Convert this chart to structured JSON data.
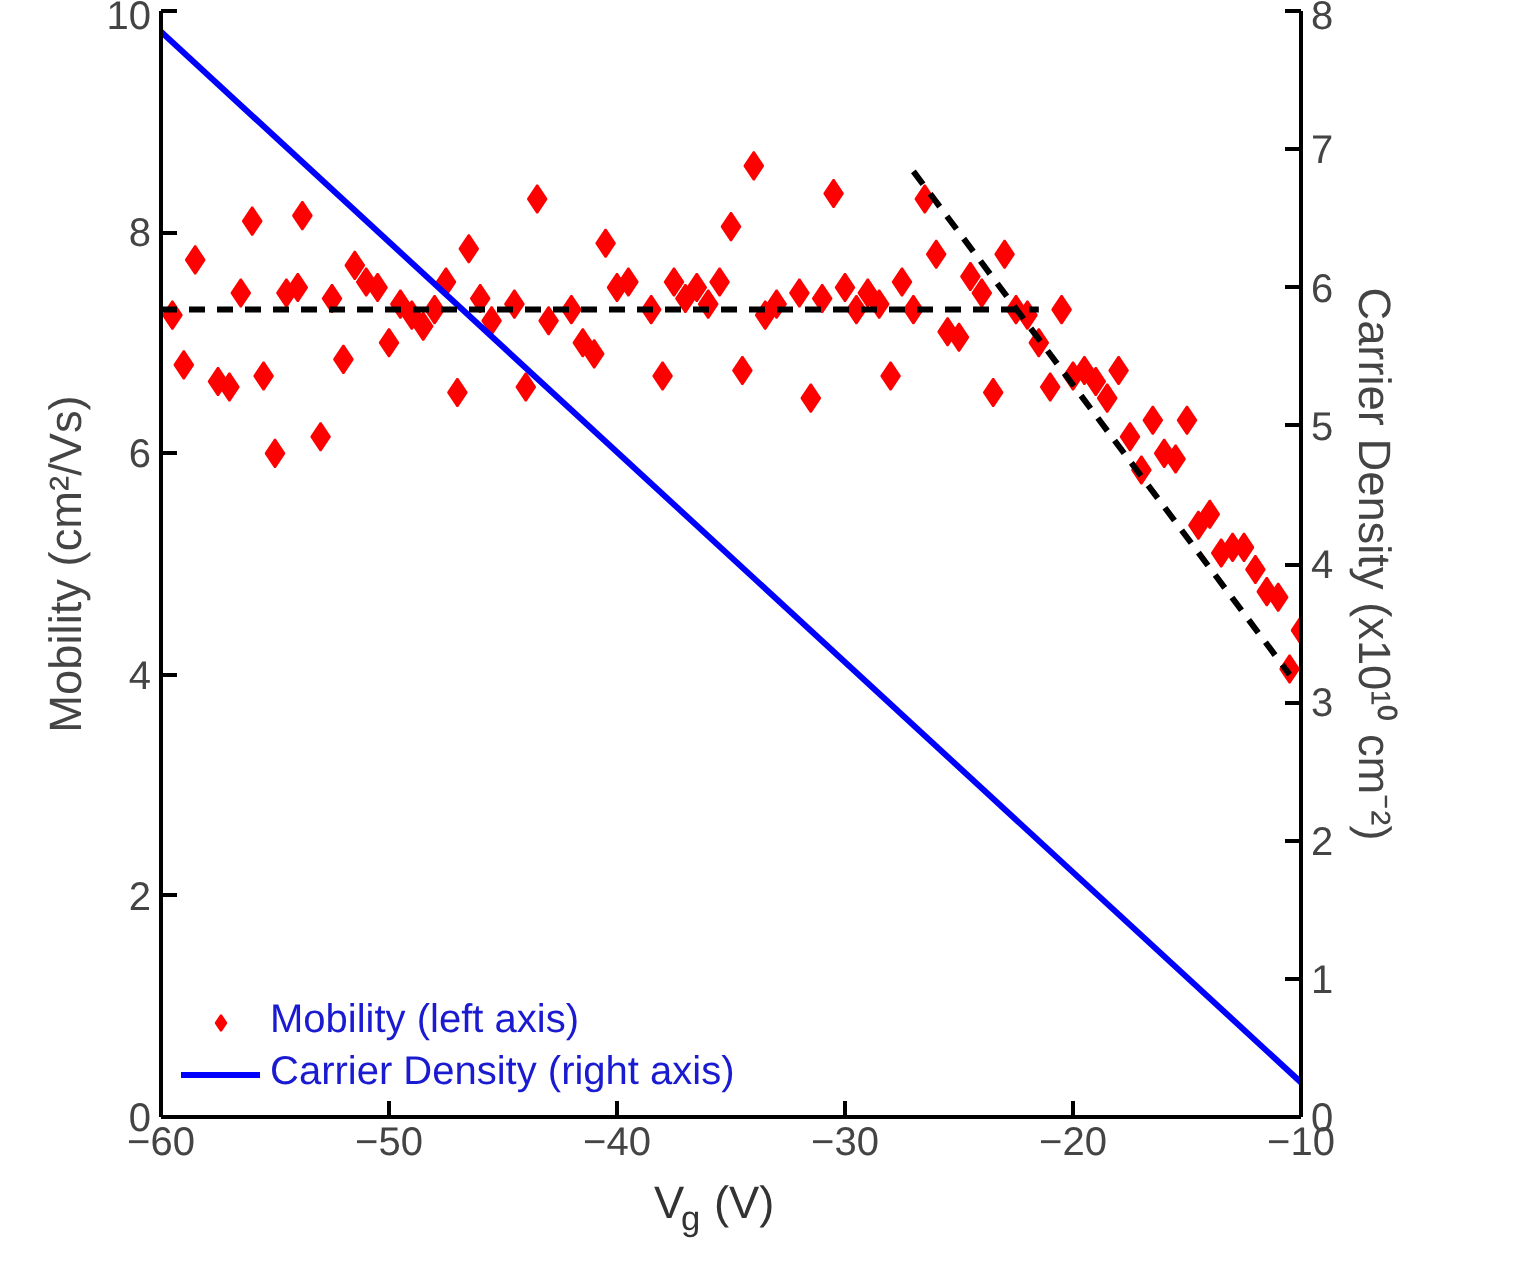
{
  "chart_data": {
    "type": "scatter",
    "xlabel": "V$_{g}$ (V)",
    "ylabel": "Mobility (cm²/Vs)",
    "y2label": "Carrier Density (x10¹⁰ cm⁻²)",
    "xlim": [
      -60,
      -10
    ],
    "xticks": [
      -60,
      -50,
      -40,
      -30,
      -20,
      -10
    ],
    "ylim": [
      0,
      10
    ],
    "yticks": [
      0,
      2,
      4,
      6,
      8,
      10
    ],
    "y2lim": [
      0,
      8
    ],
    "y2ticks": [
      0,
      1,
      2,
      3,
      4,
      5,
      6,
      7,
      8
    ],
    "grid": false,
    "legend": "bottom left",
    "series": [
      {
        "name": "Mobility (left axis)",
        "type": "scatter",
        "marker": "diamond",
        "color": "#ff0000",
        "x": [
          -59.5,
          -59,
          -58.5,
          -57.5,
          -57,
          -56.5,
          -56,
          -55.5,
          -55,
          -54.5,
          -54,
          -53.8,
          -53,
          -52.5,
          -52,
          -51.5,
          -51,
          -50.5,
          -50,
          -49.5,
          -49,
          -48.5,
          -48,
          -47.5,
          -47,
          -46.5,
          -46,
          -45.5,
          -44.5,
          -44,
          -43.5,
          -43,
          -42,
          -41.5,
          -41,
          -40.5,
          -40,
          -39.5,
          -38.5,
          -38,
          -37.5,
          -37,
          -36.5,
          -36,
          -35.5,
          -35,
          -34.5,
          -34,
          -33.5,
          -33,
          -32,
          -31.5,
          -31,
          -30.5,
          -30,
          -29.5,
          -29,
          -28.5,
          -28,
          -27.5,
          -27,
          -26.5,
          -26,
          -25.5,
          -25,
          -24.5,
          -24,
          -23.5,
          -23,
          -22.5,
          -22,
          -21.5,
          -21,
          -20.5,
          -20,
          -19.5,
          -19,
          -18.5,
          -18,
          -17.5,
          -17,
          -16.5,
          -16,
          -15.5,
          -15,
          -14.5,
          -14,
          -13.5,
          -13,
          -12.5,
          -12,
          -11.5,
          -11,
          -10.5,
          -10
        ],
        "values": [
          7.25,
          6.8,
          7.75,
          6.65,
          6.6,
          7.45,
          8.1,
          6.7,
          6.0,
          7.45,
          7.5,
          8.15,
          6.15,
          7.4,
          6.85,
          7.7,
          7.55,
          7.5,
          7.0,
          7.35,
          7.25,
          7.15,
          7.3,
          7.55,
          6.55,
          7.85,
          7.4,
          7.2,
          7.35,
          6.6,
          8.3,
          7.2,
          7.3,
          7.0,
          6.9,
          7.9,
          7.5,
          7.55,
          7.3,
          6.7,
          7.55,
          7.4,
          7.5,
          7.35,
          7.55,
          8.05,
          6.75,
          8.6,
          7.25,
          7.35,
          7.45,
          6.5,
          7.4,
          8.35,
          7.5,
          7.3,
          7.45,
          7.35,
          6.7,
          7.55,
          7.3,
          8.3,
          7.8,
          7.1,
          7.05,
          7.6,
          7.45,
          6.55,
          7.8,
          7.3,
          7.25,
          7.0,
          6.6,
          7.3,
          6.7,
          6.75,
          6.65,
          6.5,
          6.75,
          6.15,
          5.85,
          6.3,
          6.0,
          5.95,
          6.3,
          5.35,
          5.45,
          5.1,
          5.15,
          5.15,
          4.95,
          4.75,
          4.7,
          4.05,
          4.4
        ]
      },
      {
        "name": "Carrier Density (right axis)",
        "type": "line",
        "axis": "y2",
        "color": "#0000ff",
        "line_style": "solid",
        "x": [
          -60,
          -10
        ],
        "values": [
          7.85,
          0.25
        ]
      },
      {
        "type": "line",
        "color": "#000000",
        "line_style": "dashed",
        "x": [
          -60,
          -21.5
        ],
        "values": [
          7.3,
          7.3
        ]
      },
      {
        "type": "line",
        "color": "#000000",
        "line_style": "dashed",
        "x": [
          -27,
          -10.5
        ],
        "values": [
          8.55,
          4.0
        ]
      }
    ]
  }
}
